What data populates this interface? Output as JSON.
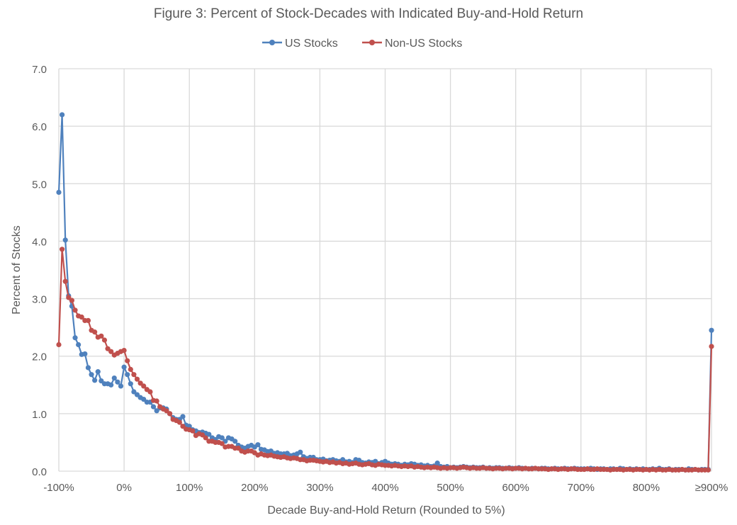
{
  "chart_data": {
    "type": "line",
    "title": "Figure 3: Percent of Stock-Decades with Indicated Buy-and-Hold Return",
    "xlabel": "Decade Buy-and-Hold Return (Rounded to 5%)",
    "ylabel": "Percent of Stocks",
    "x_start": -100,
    "x_step": 5,
    "xlim": [
      -100,
      900
    ],
    "ylim": [
      0,
      7
    ],
    "grid": true,
    "legend_position": "top-center",
    "x_tick_labels": [
      "-100%",
      "0%",
      "100%",
      "200%",
      "300%",
      "400%",
      "500%",
      "600%",
      "700%",
      "800%",
      "≥900%"
    ],
    "y_tick_labels": [
      "0.0",
      "1.0",
      "2.0",
      "3.0",
      "4.0",
      "5.0",
      "6.0",
      "7.0"
    ],
    "series": [
      {
        "name": "US Stocks",
        "color": "#4F81BD",
        "values": [
          4.85,
          6.2,
          4.02,
          3.05,
          2.87,
          2.32,
          2.2,
          2.03,
          2.04,
          1.8,
          1.68,
          1.58,
          1.73,
          1.57,
          1.52,
          1.52,
          1.5,
          1.62,
          1.55,
          1.48,
          1.81,
          1.68,
          1.52,
          1.38,
          1.33,
          1.28,
          1.25,
          1.2,
          1.2,
          1.12,
          1.05,
          1.1,
          1.1,
          1.08,
          1.0,
          0.93,
          0.9,
          0.9,
          0.95,
          0.8,
          0.78,
          0.72,
          0.7,
          0.67,
          0.68,
          0.66,
          0.64,
          0.58,
          0.55,
          0.6,
          0.58,
          0.52,
          0.58,
          0.56,
          0.52,
          0.45,
          0.42,
          0.4,
          0.43,
          0.45,
          0.42,
          0.46,
          0.38,
          0.37,
          0.34,
          0.35,
          0.31,
          0.32,
          0.3,
          0.3,
          0.31,
          0.27,
          0.28,
          0.3,
          0.33,
          0.25,
          0.22,
          0.24,
          0.24,
          0.2,
          0.2,
          0.21,
          0.18,
          0.19,
          0.2,
          0.18,
          0.17,
          0.2,
          0.16,
          0.17,
          0.15,
          0.2,
          0.19,
          0.15,
          0.14,
          0.16,
          0.15,
          0.17,
          0.13,
          0.15,
          0.17,
          0.14,
          0.12,
          0.13,
          0.12,
          0.1,
          0.12,
          0.11,
          0.13,
          0.12,
          0.1,
          0.11,
          0.09,
          0.1,
          0.08,
          0.09,
          0.14,
          0.08,
          0.07,
          0.08,
          0.06,
          0.07,
          0.06,
          0.07,
          0.08,
          0.07,
          0.06,
          0.07,
          0.06,
          0.06,
          0.07,
          0.05,
          0.06,
          0.05,
          0.06,
          0.06,
          0.05,
          0.05,
          0.06,
          0.05,
          0.05,
          0.06,
          0.05,
          0.05,
          0.04,
          0.05,
          0.05,
          0.04,
          0.05,
          0.05,
          0.04,
          0.04,
          0.05,
          0.04,
          0.04,
          0.05,
          0.04,
          0.04,
          0.05,
          0.04,
          0.04,
          0.04,
          0.04,
          0.05,
          0.04,
          0.03,
          0.04,
          0.04,
          0.03,
          0.04,
          0.04,
          0.03,
          0.05,
          0.04,
          0.03,
          0.04,
          0.03,
          0.04,
          0.03,
          0.04,
          0.03,
          0.03,
          0.04,
          0.03,
          0.05,
          0.03,
          0.03,
          0.04,
          0.02,
          0.03,
          0.03,
          0.03,
          0.02,
          0.04,
          0.03,
          0.03,
          0.02,
          0.03,
          0.03,
          0.03,
          2.45
        ]
      },
      {
        "name": "Non-US Stocks",
        "color": "#C0504D",
        "values": [
          2.2,
          3.86,
          3.3,
          3.02,
          2.97,
          2.8,
          2.7,
          2.68,
          2.62,
          2.62,
          2.45,
          2.42,
          2.33,
          2.35,
          2.28,
          2.13,
          2.08,
          2.02,
          2.05,
          2.08,
          2.1,
          1.92,
          1.77,
          1.68,
          1.6,
          1.53,
          1.48,
          1.42,
          1.38,
          1.23,
          1.22,
          1.12,
          1.08,
          1.05,
          1.0,
          0.9,
          0.88,
          0.85,
          0.78,
          0.73,
          0.72,
          0.7,
          0.62,
          0.65,
          0.63,
          0.58,
          0.52,
          0.52,
          0.5,
          0.5,
          0.48,
          0.42,
          0.43,
          0.43,
          0.4,
          0.4,
          0.35,
          0.33,
          0.35,
          0.35,
          0.32,
          0.28,
          0.3,
          0.28,
          0.27,
          0.28,
          0.26,
          0.25,
          0.24,
          0.25,
          0.23,
          0.22,
          0.23,
          0.22,
          0.2,
          0.2,
          0.18,
          0.19,
          0.19,
          0.18,
          0.17,
          0.16,
          0.17,
          0.15,
          0.16,
          0.14,
          0.15,
          0.13,
          0.14,
          0.12,
          0.13,
          0.14,
          0.12,
          0.11,
          0.12,
          0.13,
          0.11,
          0.1,
          0.12,
          0.11,
          0.1,
          0.1,
          0.09,
          0.1,
          0.09,
          0.08,
          0.09,
          0.08,
          0.09,
          0.07,
          0.08,
          0.07,
          0.06,
          0.07,
          0.06,
          0.07,
          0.06,
          0.05,
          0.06,
          0.05,
          0.06,
          0.06,
          0.05,
          0.06,
          0.07,
          0.06,
          0.05,
          0.06,
          0.05,
          0.05,
          0.06,
          0.05,
          0.05,
          0.04,
          0.05,
          0.05,
          0.04,
          0.05,
          0.05,
          0.04,
          0.05,
          0.05,
          0.04,
          0.05,
          0.04,
          0.04,
          0.05,
          0.04,
          0.04,
          0.04,
          0.03,
          0.04,
          0.04,
          0.03,
          0.04,
          0.04,
          0.03,
          0.04,
          0.04,
          0.03,
          0.03,
          0.03,
          0.04,
          0.03,
          0.03,
          0.04,
          0.03,
          0.03,
          0.03,
          0.02,
          0.03,
          0.03,
          0.03,
          0.02,
          0.03,
          0.03,
          0.02,
          0.03,
          0.03,
          0.02,
          0.03,
          0.02,
          0.03,
          0.02,
          0.03,
          0.02,
          0.02,
          0.03,
          0.02,
          0.02,
          0.02,
          0.03,
          0.02,
          0.02,
          0.02,
          0.03,
          0.02,
          0.02,
          0.02,
          0.02,
          2.17
        ]
      }
    ]
  }
}
